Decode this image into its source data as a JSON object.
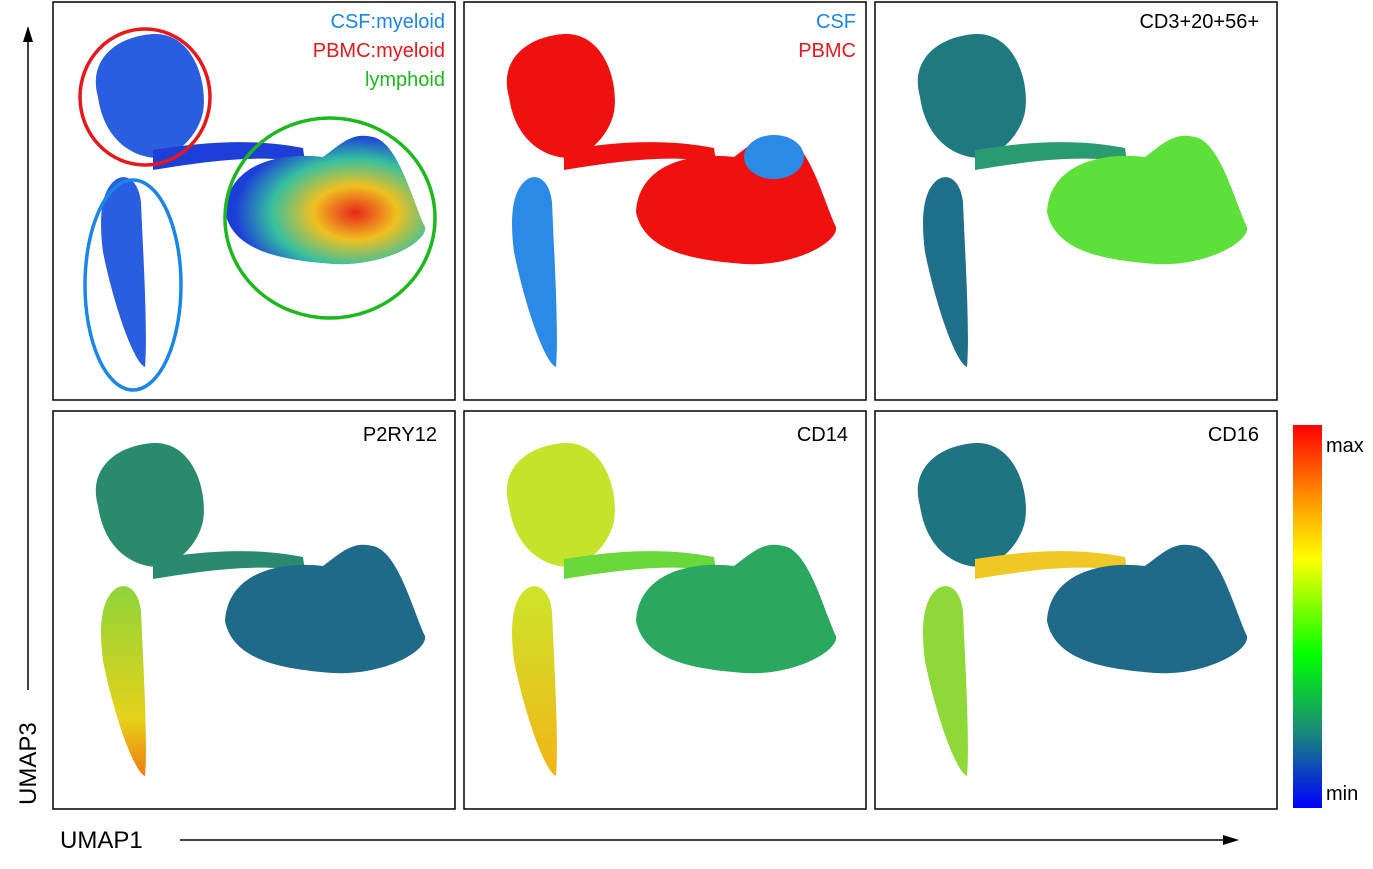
{
  "axes": {
    "x": "UMAP1",
    "y": "UMAP3"
  },
  "panels": [
    {
      "labels": [
        "CSF:myeloid",
        "PBMC:myeloid",
        "lymphoid"
      ]
    },
    {
      "labels": [
        "CSF",
        "PBMC"
      ]
    },
    {
      "title": "CD3+20+56+"
    },
    {
      "title": "P2RY12"
    },
    {
      "title": "CD14"
    },
    {
      "title": "CD16"
    }
  ],
  "colorbar": {
    "max": "max",
    "min": "min"
  }
}
